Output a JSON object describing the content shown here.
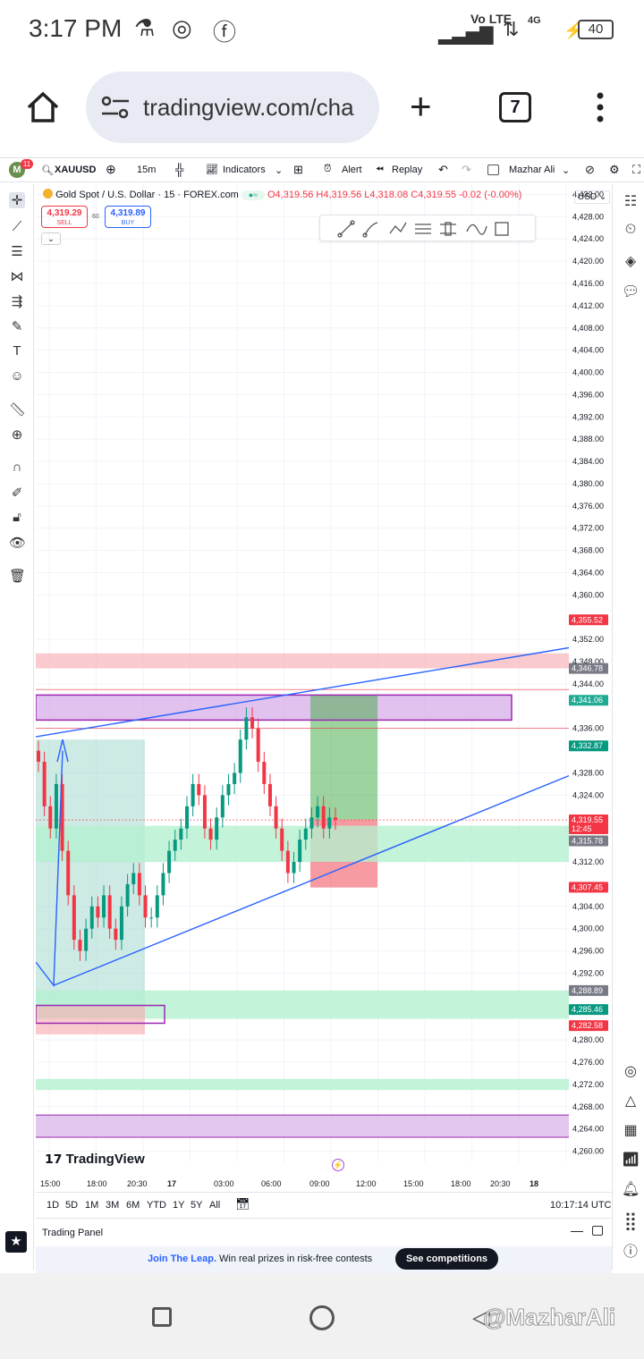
{
  "status_bar": {
    "time": "3:17 PM",
    "network": "Vo LTE",
    "network2": "4G",
    "battery": "40"
  },
  "browser": {
    "url": "tradingview.com/cha",
    "tab_count": "7"
  },
  "tv_toolbar": {
    "avatar_letter": "M",
    "notif_count": "11",
    "symbol": "XAUUSD",
    "interval": "15m",
    "indicators": "Indicators",
    "alert": "Alert",
    "replay": "Replay",
    "layout_name": "Mazhar Ali"
  },
  "legend": {
    "title": "Gold Spot / U.S. Dollar · 15 · FOREX.com",
    "open": "O4,319.56",
    "high": "H4,319.56",
    "low": "L4,318.08",
    "close": "C4,319.55",
    "change": "-0.02 (-0.00%)",
    "sell_price": "4,319.29",
    "sell_label": "SELL",
    "spread": "60",
    "buy_price": "4,319.89",
    "buy_label": "BUY"
  },
  "currency": "USD",
  "chart_data": {
    "type": "candlestick",
    "y_ticks": [
      "4,432.00",
      "4,428.00",
      "4,424.00",
      "4,420.00",
      "4,416.00",
      "4,412.00",
      "4,408.00",
      "4,404.00",
      "4,400.00",
      "4,396.00",
      "4,392.00",
      "4,388.00",
      "4,384.00",
      "4,380.00",
      "4,376.00",
      "4,372.00",
      "4,368.00",
      "4,364.00",
      "4,360.00",
      "4,352.00",
      "4,348.00",
      "4,344.00",
      "4,336.00",
      "4,328.00",
      "4,324.00",
      "4,312.00",
      "4,304.00",
      "4,300.00",
      "4,296.00",
      "4,292.00",
      "4,280.00",
      "4,276.00",
      "4,272.00",
      "4,268.00",
      "4,264.00",
      "4,260.00"
    ],
    "price_labels": [
      {
        "text": "4,355.52",
        "color": "#f23645"
      },
      {
        "text": "4,346.78",
        "color": "#787b86"
      },
      {
        "text": "4,341.06",
        "color": "#22ab94"
      },
      {
        "text": "4,332.87",
        "color": "#089981"
      },
      {
        "text": "4,319.55",
        "sub": "12:45",
        "color": "#f23645"
      },
      {
        "text": "4,315.78",
        "color": "#787b86"
      },
      {
        "text": "4,307.45",
        "color": "#f23645"
      },
      {
        "text": "4,288.89",
        "color": "#787b86"
      },
      {
        "text": "4,285.46",
        "color": "#089981"
      },
      {
        "text": "4,282.58",
        "color": "#f23645"
      }
    ],
    "x_ticks": [
      "15:00",
      "18:00",
      "20:30",
      "17",
      "03:00",
      "06:00",
      "09:00",
      "12:00",
      "15:00",
      "18:00",
      "20:30",
      "18"
    ],
    "y_range": [
      4258,
      4434
    ],
    "candles_close_path": [
      4330,
      4322,
      4318,
      4326,
      4314,
      4306,
      4298,
      4296,
      4300,
      4304,
      4302,
      4306,
      4300,
      4298,
      4304,
      4308,
      4310,
      4306,
      4302,
      4302,
      4306,
      4310,
      4314,
      4316,
      4318,
      4322,
      4326,
      4324,
      4318,
      4316,
      4320,
      4324,
      4326,
      4328,
      4334,
      4338,
      4336,
      4330,
      4326,
      4322,
      4318,
      4314,
      4310,
      4312,
      4316,
      4318,
      4320,
      4322,
      4318,
      4320,
      4319.55
    ]
  },
  "branding": "TradingView",
  "timeframes": [
    "1D",
    "5D",
    "1M",
    "3M",
    "6M",
    "YTD",
    "1Y",
    "5Y",
    "All"
  ],
  "clock": "10:17:14 UTC",
  "trading_panel": "Trading Panel",
  "banner": {
    "highlight": "Join The Leap.",
    "text": "Win real prizes in risk-free contests",
    "button": "See competitions"
  },
  "watermark": "@MazharAli"
}
